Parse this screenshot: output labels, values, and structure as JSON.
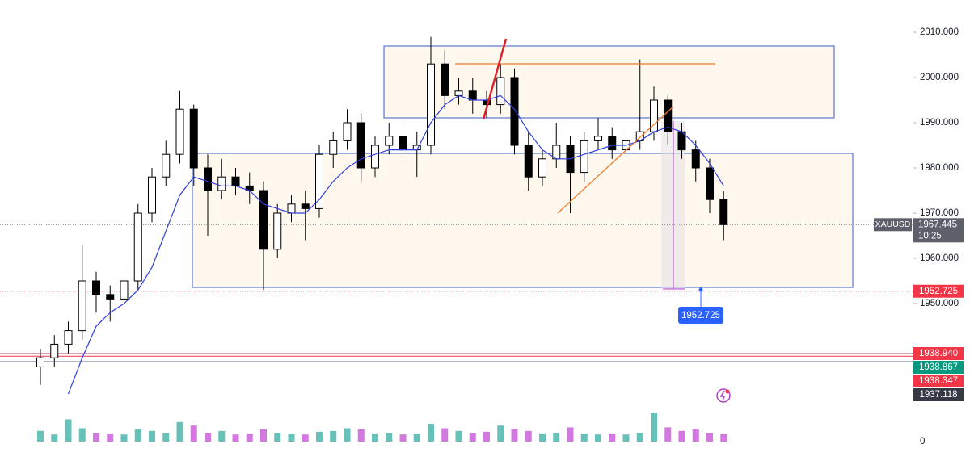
{
  "chart_data": {
    "type": "candlestick",
    "symbol": "XAUUSD",
    "countdown": "10:25",
    "last_price": {
      "value": 1967.445,
      "label": "1967.445",
      "color": "#5d606b"
    },
    "ylim": [
      1927.86,
      2017.14
    ],
    "yticks": [
      {
        "value": 1950,
        "label": "1950.000"
      },
      {
        "value": 1960,
        "label": "1960.000"
      },
      {
        "value": 1970,
        "label": "1970.000"
      },
      {
        "value": 1980,
        "label": "1980.000"
      },
      {
        "value": 1990,
        "label": "1990.000"
      },
      {
        "value": 2000,
        "label": "2000.000"
      },
      {
        "value": 2010,
        "label": "2010.000"
      }
    ],
    "up_color": "#ffffff",
    "down_color": "#000000",
    "open": [
      1936,
      1938,
      1941,
      1944,
      1955,
      1952,
      1951,
      1955,
      1970,
      1978,
      1983,
      1993,
      1980,
      1975,
      1978,
      1976,
      1975,
      1962,
      1970,
      1972,
      1971,
      1983,
      1986,
      1990,
      1980,
      1985,
      1987,
      1984,
      1985,
      2003,
      1996,
      1997,
      1995,
      1994,
      2000,
      1985,
      1978,
      1982,
      1985,
      1979,
      1986,
      1987,
      1984,
      1986,
      1988,
      1995,
      1988,
      1984,
      1980,
      1973
    ],
    "high": [
      1940,
      1943,
      1946,
      1963,
      1957,
      1954,
      1958,
      1972,
      1980,
      1986,
      1997,
      1994,
      1983,
      1982,
      1980,
      1979,
      1977,
      1972,
      1974,
      1975,
      1985,
      1988,
      1993,
      1992,
      1987,
      1990,
      1989,
      1988,
      2009,
      2006,
      2000,
      2000,
      1997,
      2003,
      2002,
      1988,
      1984,
      1990,
      1987,
      1988,
      1991,
      1989,
      1988,
      2004,
      1998,
      1996,
      1990,
      1986,
      1982,
      1975
    ],
    "low": [
      1932,
      1936,
      1939,
      1942,
      1948,
      1946,
      1949,
      1953,
      1968,
      1976,
      1981,
      1976,
      1965,
      1973,
      1974,
      1972,
      1953,
      1960,
      1968,
      1964,
      1969,
      1980,
      1984,
      1977,
      1978,
      1983,
      1982,
      1978,
      1983,
      1993,
      1994,
      1992,
      1991,
      1992,
      1983,
      1975,
      1976,
      1980,
      1970,
      1977,
      1984,
      1982,
      1982,
      1984,
      1986,
      1985,
      1982,
      1977,
      1970,
      1964
    ],
    "close": [
      1938,
      1941,
      1944,
      1955,
      1952,
      1951,
      1955,
      1970,
      1978,
      1983,
      1993,
      1980,
      1975,
      1978,
      1976,
      1975,
      1962,
      1970,
      1972,
      1971,
      1983,
      1986,
      1990,
      1980,
      1985,
      1987,
      1984,
      1985,
      2003,
      1996,
      1997,
      1995,
      1994,
      2000,
      1985,
      1978,
      1982,
      1985,
      1979,
      1986,
      1987,
      1984,
      1986,
      1988,
      1995,
      1988,
      1984,
      1980,
      1973,
      1967.445
    ],
    "moving_average": {
      "color": "#2f3fe0",
      "values": [
        null,
        null,
        1930,
        1938,
        1945,
        1948,
        1950,
        1953,
        1958,
        1966,
        1974,
        1978,
        1977,
        1976,
        1976,
        1975,
        1972,
        1971,
        1970,
        1970,
        1973,
        1977,
        1980,
        1982,
        1983,
        1984,
        1984,
        1984,
        1990,
        1994,
        1996,
        1995,
        1995,
        1996,
        1993,
        1988,
        1984,
        1982,
        1982,
        1983,
        1984,
        1985,
        1985,
        1986,
        1988,
        1989,
        1988,
        1985,
        1981,
        1976
      ]
    },
    "volume": {
      "values": [
        12,
        8,
        25,
        15,
        10,
        9,
        8,
        14,
        12,
        10,
        22,
        18,
        10,
        12,
        8,
        9,
        14,
        10,
        9,
        8,
        11,
        12,
        15,
        14,
        9,
        10,
        8,
        9,
        20,
        15,
        12,
        10,
        11,
        18,
        14,
        12,
        9,
        10,
        16,
        9,
        8,
        9,
        8,
        10,
        32,
        16,
        12,
        14,
        10,
        9
      ],
      "ylim": [
        0,
        100
      ],
      "yticks": [
        0
      ],
      "up_color": "#26a69a",
      "down_color": "#c03fd0"
    },
    "price_levels": [
      {
        "value": 1952.725,
        "label": "1952.725",
        "color": "#f23645"
      },
      {
        "value": 1938.94,
        "label": "1938.940",
        "color": "#f23645"
      },
      {
        "value": 1938.867,
        "label": "1938.867",
        "color": "#089981"
      },
      {
        "value": 1938.347,
        "label": "1938.347",
        "color": "#f23645"
      },
      {
        "value": 1937.118,
        "label": "1937.118",
        "color": "#363a45"
      }
    ]
  }
}
